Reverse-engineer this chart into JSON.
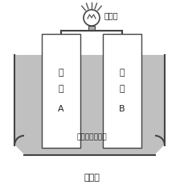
{
  "fig_bg": "#ffffff",
  "solution_color": "#c0c0c0",
  "plate_color": "#ffffff",
  "border_color": "#444444",
  "wire_color": "#444444",
  "bulb_color": "#ffffff",
  "ray_color": "#555555",
  "text_color": "#222222",
  "plate_A_line1": "金",
  "plate_A_line2": "属",
  "plate_A_line3": "A",
  "plate_B_line1": "金",
  "plate_B_line2": "属",
  "plate_B_line3": "B",
  "label_solution": "電解質の水溶液",
  "label_bulb": "豆電球",
  "label_fig": "図　１"
}
